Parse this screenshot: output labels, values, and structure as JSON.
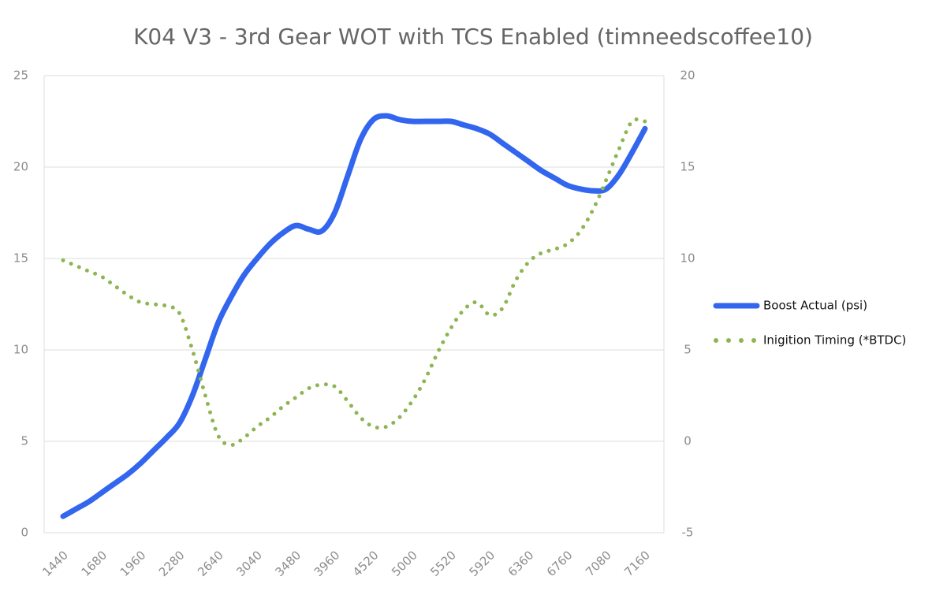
{
  "chart_data": {
    "type": "line",
    "title": "K04 V3 - 3rd Gear WOT with TCS Enabled (timneedscoffee10)",
    "categories": [
      "1440",
      null,
      null,
      "1680",
      null,
      null,
      "1960",
      null,
      null,
      "2280",
      null,
      null,
      "2640",
      null,
      null,
      "3040",
      null,
      null,
      "3480",
      null,
      null,
      "3960",
      null,
      null,
      "4520",
      null,
      null,
      "5000",
      null,
      null,
      "5520",
      null,
      null,
      "5920",
      null,
      null,
      "6360",
      null,
      null,
      "6760",
      null,
      null,
      "7080",
      null,
      null,
      "7160"
    ],
    "series": [
      {
        "name": "Boost Actual (psi)",
        "color": "#3366ee",
        "style": "solid",
        "values": [
          0.9,
          1.3,
          1.7,
          2.2,
          2.7,
          3.2,
          3.8,
          4.5,
          5.2,
          6.0,
          7.5,
          9.5,
          11.5,
          12.9,
          14.1,
          15.0,
          15.8,
          16.4,
          16.8,
          16.6,
          16.5,
          17.5,
          19.5,
          21.5,
          22.6,
          22.8,
          22.6,
          22.5,
          22.5,
          22.5,
          22.5,
          22.3,
          22.1,
          21.8,
          21.3,
          20.8,
          20.3,
          19.8,
          19.4,
          19.0,
          18.8,
          18.7,
          18.8,
          19.6,
          20.8,
          22.1
        ]
      },
      {
        "name": "Inigition Timing (*BTDC)",
        "color": "#8db552",
        "style": "dotted",
        "axis": "y2",
        "values": [
          9.9,
          9.6,
          9.3,
          9.0,
          8.5,
          8.0,
          7.6,
          7.5,
          7.4,
          7.0,
          5.0,
          2.5,
          0.3,
          -0.2,
          0.2,
          0.8,
          1.3,
          1.9,
          2.4,
          2.9,
          3.1,
          3.0,
          2.2,
          1.3,
          0.8,
          0.8,
          1.3,
          2.2,
          3.4,
          4.9,
          6.2,
          7.2,
          7.6,
          6.9,
          7.3,
          8.8,
          9.8,
          10.3,
          10.5,
          10.8,
          11.5,
          12.7,
          14.3,
          16.0,
          17.5,
          17.5
        ]
      }
    ],
    "ylim": [
      0,
      25
    ],
    "yticks": [
      0,
      5,
      10,
      15,
      20,
      25
    ],
    "y2lim": [
      -5,
      20
    ],
    "y2ticks": [
      -5,
      0,
      5,
      10,
      15,
      20
    ],
    "grid": true,
    "legend": "right"
  }
}
